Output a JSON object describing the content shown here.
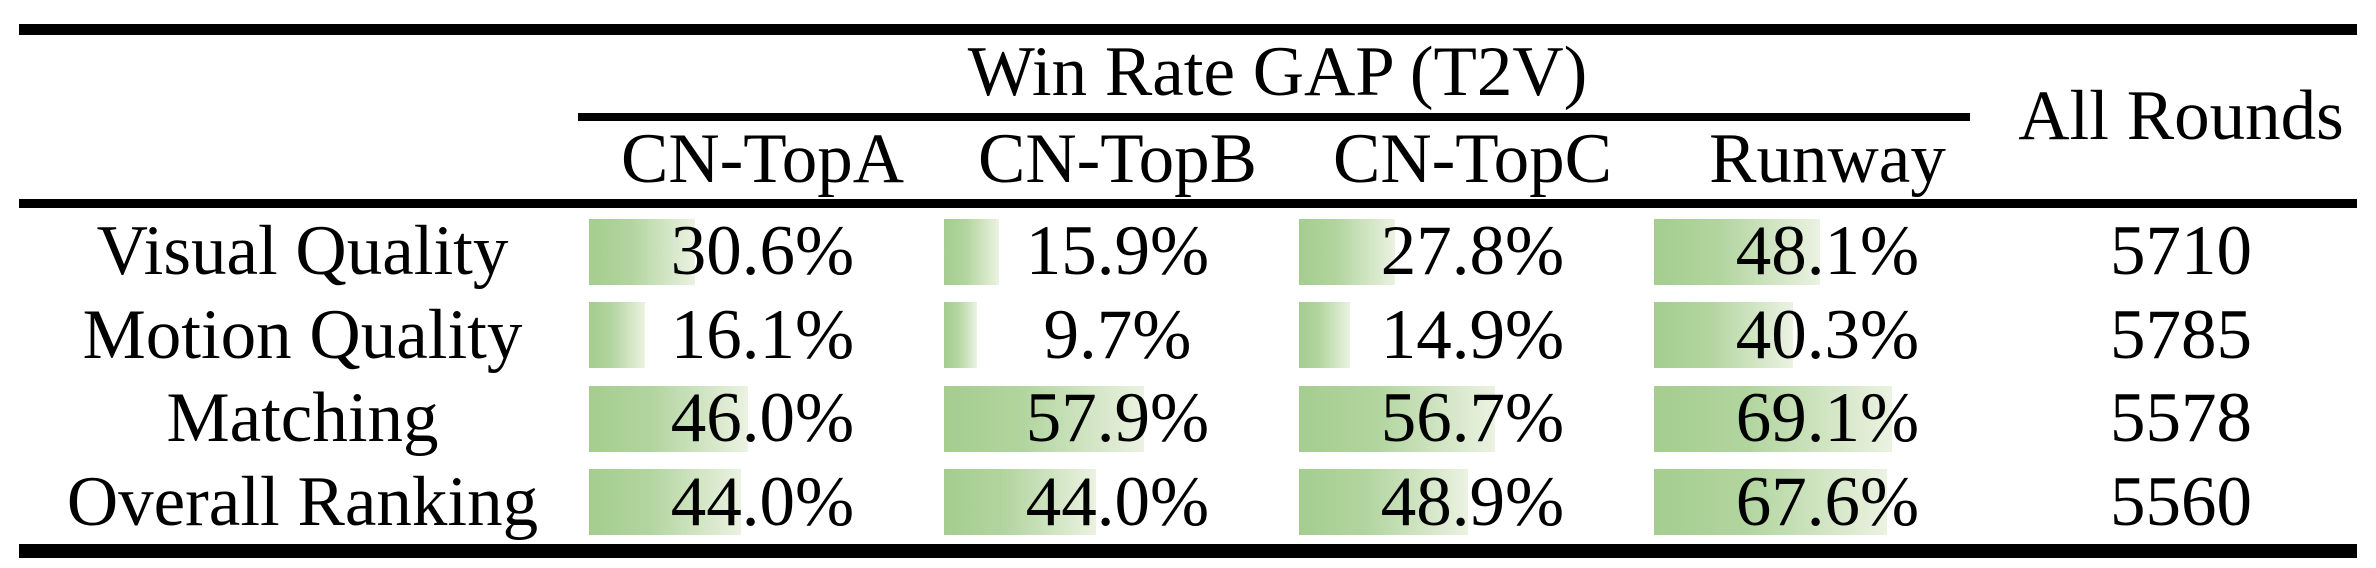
{
  "table": {
    "title": "Win Rate GAP (T2V)",
    "all_rounds_header": "All Rounds",
    "columns": [
      "CN-TopA",
      "CN-TopB",
      "CN-TopC",
      "Runway"
    ],
    "rows": [
      {
        "label": "Visual Quality",
        "win_rates": [
          30.6,
          15.9,
          27.8,
          48.1
        ],
        "all_rounds": "5710"
      },
      {
        "label": "Motion Quality",
        "win_rates": [
          16.1,
          9.7,
          14.9,
          40.3
        ],
        "all_rounds": "5785"
      },
      {
        "label": "Matching",
        "win_rates": [
          46.0,
          57.9,
          56.7,
          69.1
        ],
        "all_rounds": "5578"
      },
      {
        "label": "Overall Ranking",
        "win_rates": [
          44.0,
          44.0,
          48.9,
          67.6
        ],
        "all_rounds": "5560"
      }
    ]
  },
  "colors": {
    "bar_gradient_start": "#a4cd8f",
    "bar_gradient_mid": "#b2d59f",
    "bar_gradient_end": "#ebf2e1",
    "rule": "#000000",
    "background": "#ffffff",
    "text": "#000000"
  },
  "chart_data": {
    "type": "table",
    "title": "Win Rate GAP (T2V)",
    "categories": [
      "CN-TopA",
      "CN-TopB",
      "CN-TopC",
      "Runway"
    ],
    "series": [
      {
        "name": "Visual Quality",
        "values": [
          30.6,
          15.9,
          27.8,
          48.1
        ]
      },
      {
        "name": "Motion Quality",
        "values": [
          16.1,
          9.7,
          14.9,
          40.3
        ]
      },
      {
        "name": "Matching",
        "values": [
          46.0,
          57.9,
          56.7,
          69.1
        ]
      },
      {
        "name": "Overall Ranking",
        "values": [
          44.0,
          44.0,
          48.9,
          67.6
        ]
      }
    ],
    "all_rounds_column": {
      "label": "All Rounds",
      "values": [
        5710,
        5785,
        5578,
        5560
      ]
    },
    "value_unit": "%",
    "bar_scale": {
      "min": 0,
      "max": 100
    },
    "bar_style": "green gradient data bars, length proportional to value"
  }
}
